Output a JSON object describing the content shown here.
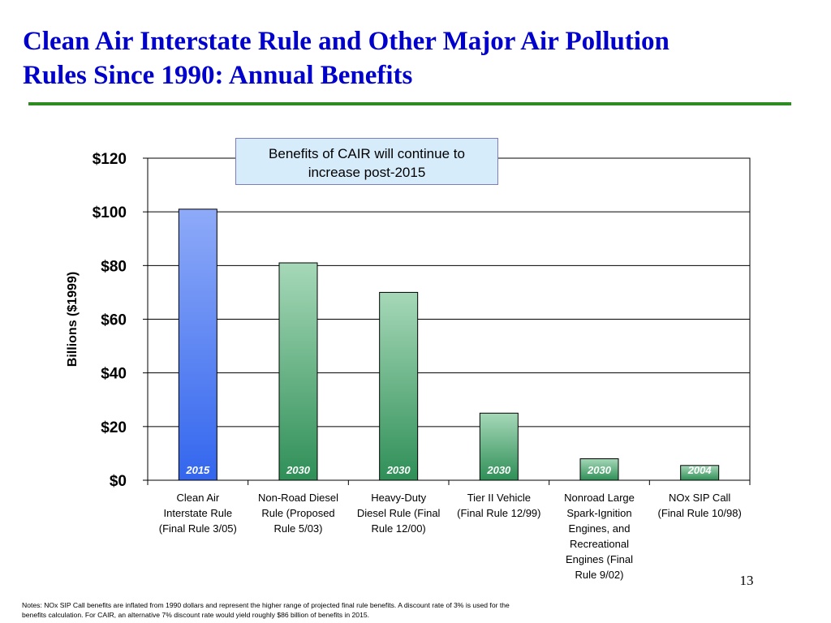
{
  "slide": {
    "title_line1": "Clean Air Interstate Rule and Other Major Air Pollution",
    "title_line2": "Rules Since 1990:  Annual Benefits",
    "callout_line1": "Benefits of CAIR will continue to",
    "callout_line2": "increase post-2015",
    "slide_number": "13",
    "notes_line1": "Notes: NOx SIP Call benefits are inflated from 1990 dollars and represent the higher range of projected final rule benefits.  A discount rate of 3% is used for the",
    "notes_line2": "benefits calculation.  For CAIR, an alternative 7% discount rate would yield roughly $86 billion of benefits in 2015."
  },
  "colors": {
    "title": "#0000cc",
    "rule": "#2e8b22",
    "cair_bar_top": "#8eaaf8",
    "cair_bar_bottom": "#3366ee",
    "other_bar_top": "#a6d8b8",
    "other_bar_bottom": "#2f8f57",
    "callout_bg": "#d6ecfb"
  },
  "chart_data": {
    "type": "bar",
    "ylabel": "Billions ($1999)",
    "ylim": [
      0,
      120
    ],
    "yticks": [
      0,
      20,
      40,
      60,
      80,
      100,
      120
    ],
    "ytick_labels": [
      "$0",
      "$20",
      "$40",
      "$60",
      "$80",
      "$100",
      "$120"
    ],
    "grid": true,
    "categories": [
      [
        "Clean Air",
        "Interstate Rule",
        "(Final Rule 3/05)"
      ],
      [
        "Non-Road Diesel",
        "Rule (Proposed",
        "Rule 5/03)"
      ],
      [
        "Heavy-Duty",
        "Diesel Rule (Final",
        "Rule 12/00)"
      ],
      [
        "Tier II Vehicle",
        "(Final Rule 12/99)"
      ],
      [
        "Nonroad Large",
        "Spark-Ignition",
        "Engines, and",
        "Recreational",
        "Engines (Final",
        "Rule 9/02)"
      ],
      [
        "NOx SIP Call",
        "(Final Rule 10/98)"
      ]
    ],
    "values": [
      101,
      81,
      70,
      25,
      8,
      5.5
    ],
    "year_labels": [
      "2015",
      "2030",
      "2030",
      "2030",
      "2030",
      "2004"
    ]
  }
}
